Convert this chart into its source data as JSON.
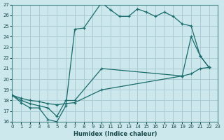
{
  "xlabel": "Humidex (Indice chaleur)",
  "bg_color": "#cce8ec",
  "grid_color": "#aaccd4",
  "line_color": "#1a6b6b",
  "xlim": [
    0,
    23
  ],
  "ylim": [
    16,
    27
  ],
  "xticks": [
    0,
    1,
    2,
    3,
    4,
    5,
    6,
    7,
    8,
    9,
    10,
    11,
    12,
    13,
    14,
    15,
    16,
    17,
    18,
    19,
    20,
    21,
    22,
    23
  ],
  "yticks": [
    16,
    17,
    18,
    19,
    20,
    21,
    22,
    23,
    24,
    25,
    26,
    27
  ],
  "line1_x": [
    0,
    1,
    2,
    3,
    4,
    5,
    6,
    7,
    8,
    10,
    11,
    12,
    13,
    14,
    15,
    16,
    17,
    18,
    19,
    20,
    21,
    22
  ],
  "line1_y": [
    18.5,
    17.8,
    17.3,
    17.3,
    16.2,
    16.0,
    17.5,
    24.7,
    24.8,
    27.2,
    26.5,
    25.9,
    25.9,
    26.6,
    26.3,
    25.9,
    26.3,
    25.9,
    25.2,
    25.0,
    22.2,
    21.1
  ],
  "line2_x": [
    0,
    1,
    2,
    3,
    4,
    5,
    6,
    7,
    10,
    19,
    20,
    21,
    22
  ],
  "line2_y": [
    18.5,
    18.0,
    17.7,
    17.5,
    17.3,
    16.5,
    18.0,
    18.0,
    21.0,
    20.3,
    24.0,
    22.2,
    21.1
  ],
  "line3_x": [
    0,
    1,
    2,
    3,
    4,
    5,
    6,
    7,
    10,
    19,
    20,
    21,
    22
  ],
  "line3_y": [
    18.5,
    18.2,
    18.0,
    17.9,
    17.7,
    17.6,
    17.7,
    17.8,
    19.0,
    20.3,
    20.5,
    21.0,
    21.1
  ]
}
